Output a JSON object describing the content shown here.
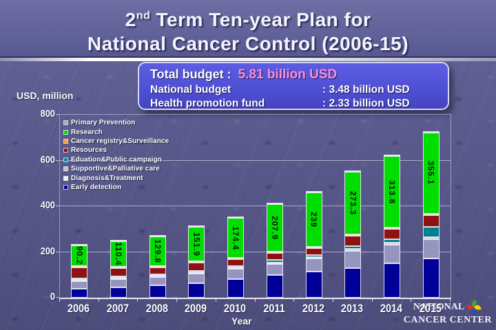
{
  "slide": {
    "title": {
      "line1_pre": "2",
      "line1_sup": "nd",
      "line1_post": " Term Ten-year Plan for",
      "line2": "National Cancer Control (2006-15)"
    },
    "budget_box": {
      "total_label": "Total budget :",
      "total_value": "5.81 billion USD",
      "rows": [
        {
          "label": "National budget",
          "value": ": 3.48 billion USD"
        },
        {
          "label": "Health promotion fund",
          "value": ": 2.33 billion USD"
        }
      ]
    },
    "logo": {
      "line1": "NATIONAL",
      "line2": "CANCER CENTER",
      "pinwheel_colors": [
        "#3aaa35",
        "#ffcc00",
        "#2255aa",
        "#dd3322"
      ]
    }
  },
  "chart_data": {
    "type": "bar",
    "stacked": true,
    "unit_label": "USD, million",
    "xlabel": "Year",
    "ylim": [
      0,
      800
    ],
    "yticks": [
      0,
      200,
      400,
      600,
      800
    ],
    "grid": "horizontal",
    "legend_position": "inside-top-left",
    "categories": [
      "2006",
      "2007",
      "2008",
      "2009",
      "2010",
      "2011",
      "2012",
      "2013",
      "2014",
      "2015"
    ],
    "series": [
      {
        "name": "Early detection",
        "color": "#000099",
        "legend_color": "#000099",
        "values": [
          40,
          46,
          53,
          62,
          80,
          100,
          115,
          130,
          150,
          170
        ]
      },
      {
        "name": "Diagnosis&Treatment",
        "color": "#9595bf",
        "legend_color": "#f0f0f0",
        "values": [
          32,
          36,
          36,
          42,
          45,
          48,
          55,
          75,
          82,
          86
        ]
      },
      {
        "name": "Supportive&Palliative care",
        "color": "#c8c8cf",
        "legend_color": "#c0c0c8",
        "values": [
          4,
          4,
          4,
          4,
          5,
          6,
          8,
          8,
          8,
          9
        ]
      },
      {
        "name": "Eduation&Public campaign",
        "color": "#00808f",
        "legend_color": "#008b9a",
        "values": [
          5,
          5,
          5,
          6,
          7,
          10,
          10,
          12,
          15,
          45
        ]
      },
      {
        "name": "Resources",
        "color": "#8e1212",
        "legend_color": "#8b1010",
        "values": [
          48,
          36,
          30,
          36,
          30,
          32,
          28,
          45,
          45,
          52
        ]
      },
      {
        "name": "Cancer registry&Surveillance",
        "color": "#f0a030",
        "legend_color": "#f0a020",
        "values": [
          2,
          2,
          2,
          2,
          2,
          2,
          2,
          2,
          2,
          2
        ]
      },
      {
        "name": "Research",
        "color": "#00dd00",
        "legend_color": "#00dd00",
        "values": [
          90.2,
          110.4,
          129.8,
          151.9,
          174.4,
          207.9,
          239,
          273.3,
          313.8,
          355.1
        ],
        "labels": [
          "90.2",
          "110.4",
          "129.8",
          "151.9",
          "174.4",
          "207.9",
          "239",
          "273.3",
          "313.8",
          "355.1"
        ]
      },
      {
        "name": "Primary Prevention",
        "color": "#a8a8a8",
        "legend_color": "#a8a8a8",
        "values": [
          3,
          3,
          3,
          3,
          3,
          3,
          3,
          3,
          3,
          3
        ]
      }
    ],
    "legend_order_top_to_bottom": [
      "Primary Prevention",
      "Research",
      "Cancer registry&Surveillance",
      "Resources",
      "Eduation&Public campaign",
      "Supportive&Palliative care",
      "Diagnosis&Treatment",
      "Early detection"
    ]
  }
}
